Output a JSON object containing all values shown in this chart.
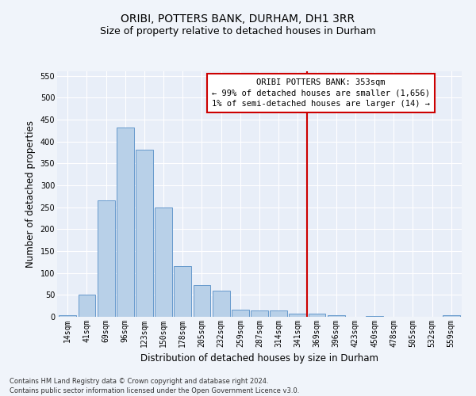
{
  "title": "ORIBI, POTTERS BANK, DURHAM, DH1 3RR",
  "subtitle": "Size of property relative to detached houses in Durham",
  "xlabel": "Distribution of detached houses by size in Durham",
  "ylabel": "Number of detached properties",
  "categories": [
    "14sqm",
    "41sqm",
    "69sqm",
    "96sqm",
    "123sqm",
    "150sqm",
    "178sqm",
    "205sqm",
    "232sqm",
    "259sqm",
    "287sqm",
    "314sqm",
    "341sqm",
    "369sqm",
    "396sqm",
    "423sqm",
    "450sqm",
    "478sqm",
    "505sqm",
    "532sqm",
    "559sqm"
  ],
  "values": [
    3,
    51,
    265,
    432,
    382,
    250,
    115,
    72,
    60,
    17,
    15,
    14,
    8,
    7,
    4,
    0,
    1,
    0,
    0,
    0,
    3
  ],
  "bar_color": "#b8d0e8",
  "bar_edge_color": "#6699cc",
  "vline_color": "#cc0000",
  "annotation_text": "ORIBI POTTERS BANK: 353sqm\n← 99% of detached houses are smaller (1,656)\n1% of semi-detached houses are larger (14) →",
  "annotation_box_color": "#ffffff",
  "annotation_box_edge": "#cc0000",
  "ylim": [
    0,
    560
  ],
  "yticks": [
    0,
    50,
    100,
    150,
    200,
    250,
    300,
    350,
    400,
    450,
    500,
    550
  ],
  "bg_color": "#e8eef8",
  "grid_color": "#ffffff",
  "footnote": "Contains HM Land Registry data © Crown copyright and database right 2024.\nContains public sector information licensed under the Open Government Licence v3.0.",
  "title_fontsize": 10,
  "subtitle_fontsize": 9,
  "label_fontsize": 8.5,
  "tick_fontsize": 7,
  "annot_fontsize": 7.5,
  "footnote_fontsize": 6
}
